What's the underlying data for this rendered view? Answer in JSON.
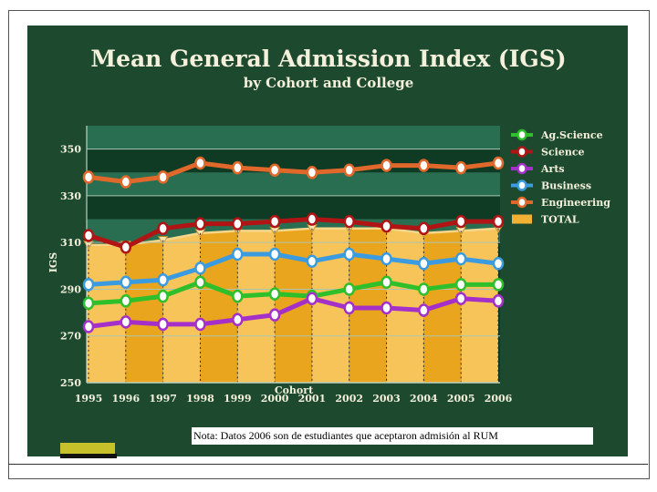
{
  "slide": {
    "title": "Mean General Admission Index (IGS)",
    "subtitle": "by Cohort and College",
    "note": "Nota:  Datos 2006 son de estudiantes que aceptaron admisión al RUM"
  },
  "colors": {
    "background": "#1d4a2e",
    "band_dark": "#0f3a24",
    "band_light": "#2a6e52",
    "total_fill": "#f2b134",
    "ag_science": "#2fbf2a",
    "science": "#b01414",
    "arts": "#a530c9",
    "business": "#3b9be0",
    "engineering": "#e0682a"
  },
  "chart_data": {
    "type": "line",
    "title": "Mean General Admission Index (IGS)",
    "subtitle": "by Cohort and College",
    "xlabel": "Cohort",
    "ylabel": "IGS",
    "ylim": [
      250,
      360
    ],
    "yticks": [
      "250",
      "270",
      "290",
      "310",
      "330",
      "350"
    ],
    "x": [
      "1995",
      "1996",
      "1997",
      "1998",
      "1999",
      "2000",
      "2001",
      "2002",
      "2003",
      "2004",
      "2005",
      "2006"
    ],
    "legend_position": "right",
    "series": [
      {
        "name": "Ag.Science",
        "color": "#2fbf2a",
        "values": [
          284,
          285,
          287,
          293,
          287,
          288,
          287,
          290,
          293,
          290,
          292,
          292
        ]
      },
      {
        "name": "Science",
        "color": "#b01414",
        "values": [
          313,
          308,
          316,
          318,
          318,
          319,
          320,
          319,
          317,
          316,
          319,
          319
        ]
      },
      {
        "name": "Arts",
        "color": "#a530c9",
        "values": [
          274,
          276,
          275,
          275,
          277,
          279,
          286,
          282,
          282,
          281,
          286,
          285
        ]
      },
      {
        "name": "Business",
        "color": "#3b9be0",
        "values": [
          292,
          293,
          294,
          299,
          305,
          305,
          302,
          305,
          303,
          301,
          303,
          301
        ]
      },
      {
        "name": "Engineering",
        "color": "#e0682a",
        "values": [
          338,
          336,
          338,
          344,
          342,
          341,
          340,
          341,
          343,
          343,
          342,
          344
        ]
      },
      {
        "name": "TOTAL",
        "color": "#f2b134",
        "type": "area",
        "values": [
          309,
          309,
          311,
          314,
          315,
          315,
          316,
          316,
          316,
          314,
          315,
          316
        ]
      }
    ]
  }
}
